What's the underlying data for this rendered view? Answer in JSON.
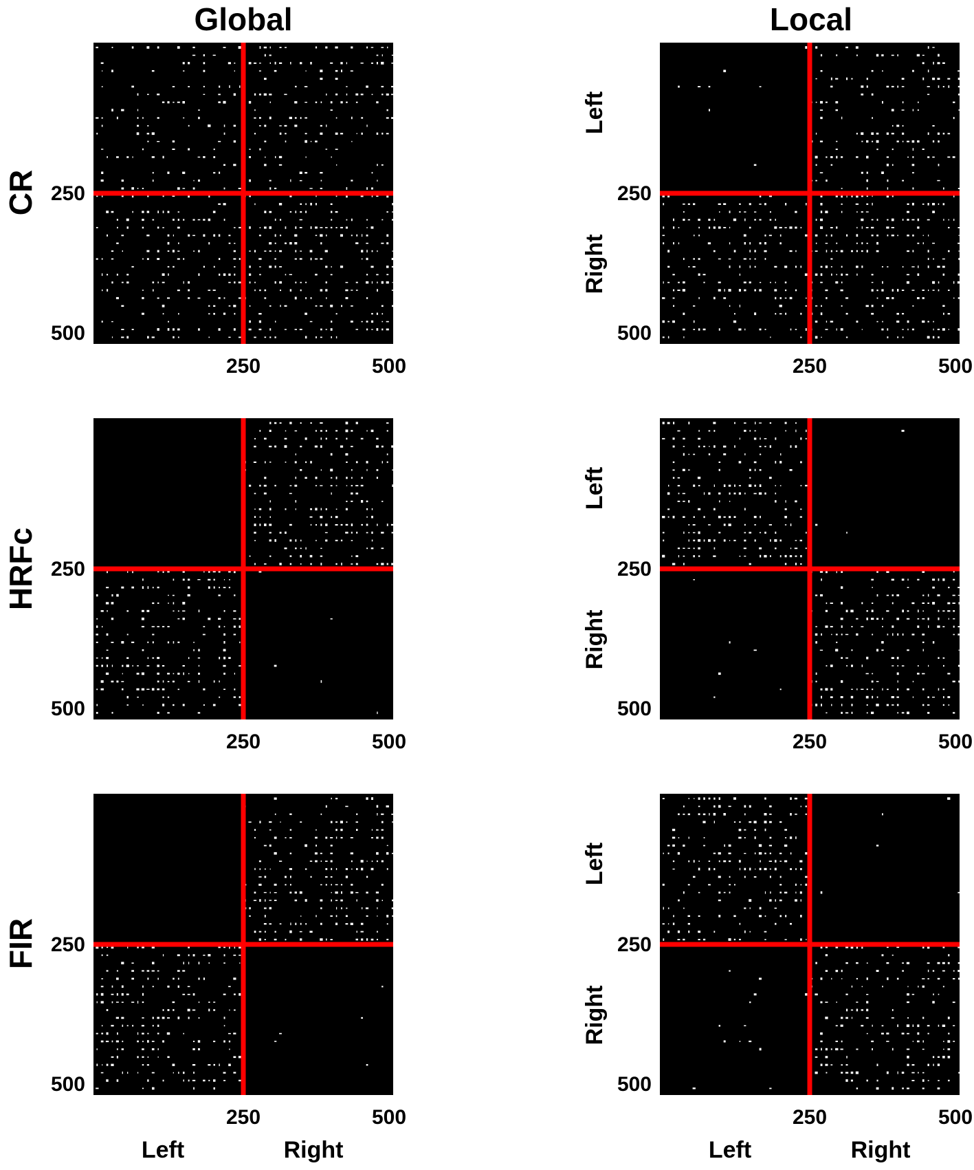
{
  "chart_data": {
    "type": "heatmap",
    "column_titles": [
      "Global",
      "Local"
    ],
    "row_labels": [
      "CR",
      "HRFc",
      "FIR"
    ],
    "tick_labels": [
      "250",
      "500"
    ],
    "ticks": [
      250,
      500
    ],
    "xlim": [
      0,
      500
    ],
    "ylim": [
      0,
      500
    ],
    "hemisphere_split": 250,
    "block_labels": [
      "Left",
      "Right"
    ],
    "colors": {
      "background": "#000000",
      "dots": "#ffffff",
      "divider": "#ff0000"
    },
    "panels": [
      {
        "row": "CR",
        "column": "Global",
        "density": {
          "LL": 0.55,
          "LR": 0.75,
          "RL": 0.75,
          "RR": 0.95
        }
      },
      {
        "row": "CR",
        "column": "Local",
        "density": {
          "LL": 0.04,
          "LR": 0.75,
          "RL": 0.75,
          "RR": 0.95
        }
      },
      {
        "row": "HRFc",
        "column": "Global",
        "density": {
          "LL": 0.0,
          "LR": 0.9,
          "RL": 0.9,
          "RR": 0.03
        }
      },
      {
        "row": "HRFc",
        "column": "Local",
        "density": {
          "LL": 0.9,
          "LR": 0.02,
          "RL": 0.02,
          "RR": 0.95
        }
      },
      {
        "row": "FIR",
        "column": "Global",
        "density": {
          "LL": 0.0,
          "LR": 0.9,
          "RL": 0.9,
          "RR": 0.03
        }
      },
      {
        "row": "FIR",
        "column": "Local",
        "density": {
          "LL": 0.9,
          "LR": 0.03,
          "RL": 0.05,
          "RR": 0.9
        }
      }
    ]
  }
}
